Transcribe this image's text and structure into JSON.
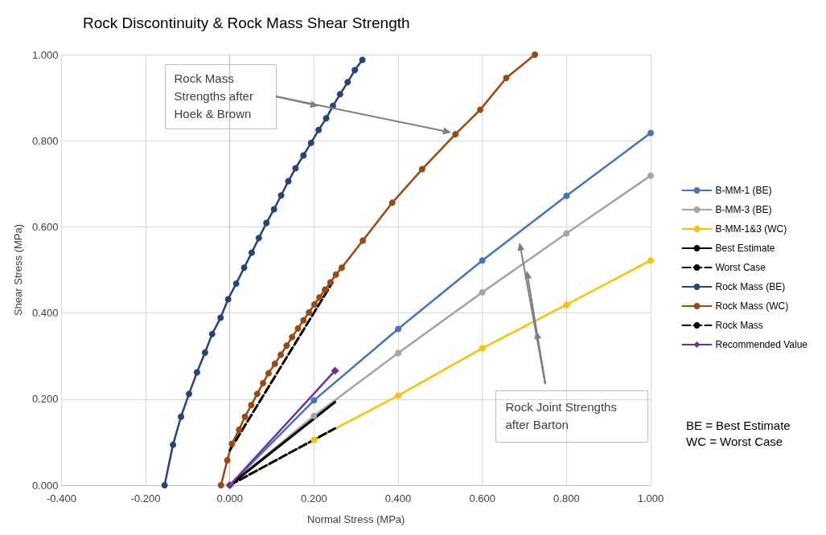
{
  "chart_data": {
    "type": "line",
    "title": "Rock Discontinuity & Rock Mass Shear Strength",
    "xlabel": "Normal Stress (MPa)",
    "ylabel": "Shear Stress (MPa)",
    "xlim": [
      -0.4,
      1.0
    ],
    "xticks": [
      {
        "value": -0.4,
        "label": "-0.400"
      },
      {
        "value": -0.2,
        "label": "-0.200"
      },
      {
        "value": 0,
        "label": "0.000"
      },
      {
        "value": 0.2,
        "label": "0.200"
      },
      {
        "value": 0.4,
        "label": "0.400"
      },
      {
        "value": 0.6,
        "label": "0.600"
      },
      {
        "value": 0.8,
        "label": "0.800"
      },
      {
        "value": 1.0,
        "label": "1.000"
      }
    ],
    "ylim": [
      0,
      1.0
    ],
    "yticks": [
      {
        "value": 0,
        "label": "0.000"
      },
      {
        "value": 0.2,
        "label": "0.200"
      },
      {
        "value": 0.4,
        "label": "0.400"
      },
      {
        "value": 0.6,
        "label": "0.600"
      },
      {
        "value": 0.8,
        "label": "0.800"
      },
      {
        "value": 1.0,
        "label": "1.000"
      }
    ],
    "grid": true,
    "legend": "right",
    "series": [
      {
        "name": "B-MM-1 (BE)",
        "color": "#4472c4",
        "marker": "circle",
        "line_style": "solid",
        "x": [
          0,
          0.2,
          0.4,
          0.6,
          0.8,
          1.0
        ],
        "values": [
          0,
          0.197,
          0.363,
          0.522,
          0.672,
          0.818
        ]
      },
      {
        "name": "B-MM-3 (BE)",
        "color": "#a5a5a5",
        "marker": "circle",
        "line_style": "solid",
        "x": [
          0,
          0.2,
          0.4,
          0.6,
          0.8,
          1.0
        ],
        "values": [
          0,
          0.161,
          0.307,
          0.448,
          0.585,
          0.719
        ]
      },
      {
        "name": "B-MM-1&3 (WC)",
        "color": "#ffc000",
        "marker": "circle",
        "line_style": "solid",
        "x": [
          0,
          0.2,
          0.4,
          0.6,
          0.8,
          1.0
        ],
        "values": [
          0,
          0.105,
          0.208,
          0.318,
          0.419,
          0.522
        ]
      },
      {
        "name": "Best Estimate",
        "color": "#000000",
        "marker": "none",
        "line_style": "solid",
        "x": [
          0,
          0.25
        ],
        "values": [
          0,
          0.193
        ]
      },
      {
        "name": "Worst Case",
        "color": "#000000",
        "marker": "none",
        "line_style": "dashed",
        "x": [
          0,
          0.25
        ],
        "values": [
          0,
          0.132
        ]
      },
      {
        "name": "Rock Mass (BE)",
        "color": "#264478",
        "marker": "circle",
        "line_style": "solid",
        "x": [
          -0.155,
          -0.135,
          -0.116,
          -0.097,
          -0.078,
          -0.059,
          -0.042,
          -0.022,
          -0.004,
          0.015,
          0.034,
          0.052,
          0.069,
          0.087,
          0.105,
          0.122,
          0.139,
          0.156,
          0.175,
          0.193,
          0.211,
          0.229,
          0.245,
          0.262,
          0.28,
          0.297,
          0.315
        ],
        "values": [
          0,
          0.094,
          0.159,
          0.212,
          0.262,
          0.308,
          0.351,
          0.389,
          0.432,
          0.468,
          0.505,
          0.54,
          0.574,
          0.609,
          0.641,
          0.673,
          0.706,
          0.736,
          0.766,
          0.795,
          0.825,
          0.852,
          0.881,
          0.908,
          0.936,
          0.964,
          0.988
        ]
      },
      {
        "name": "Rock Mass (WC)",
        "color": "#9e480e",
        "marker": "circle",
        "line_style": "solid",
        "x": [
          -0.021,
          -0.006,
          0.005,
          0.022,
          0.036,
          0.051,
          0.065,
          0.079,
          0.092,
          0.107,
          0.121,
          0.135,
          0.148,
          0.162,
          0.175,
          0.188,
          0.201,
          0.213,
          0.226,
          0.239,
          0.252,
          0.266,
          0.316,
          0.386,
          0.457,
          0.536,
          0.595,
          0.657,
          0.725
        ],
        "values": [
          0,
          0.058,
          0.096,
          0.129,
          0.159,
          0.186,
          0.212,
          0.237,
          0.26,
          0.282,
          0.303,
          0.324,
          0.344,
          0.364,
          0.383,
          0.401,
          0.42,
          0.436,
          0.454,
          0.471,
          0.489,
          0.505,
          0.568,
          0.656,
          0.734,
          0.815,
          0.872,
          0.946,
          1.0
        ]
      },
      {
        "name": "Rock Mass",
        "color": "#000000",
        "marker": "none",
        "line_style": "dashed",
        "x": [
          0,
          0.244
        ],
        "values": [
          0.081,
          0.471
        ]
      },
      {
        "name": "Recommended Value",
        "color": "#7030a0",
        "marker": "diamond",
        "line_style": "solid",
        "x": [
          0,
          0.25
        ],
        "values": [
          0,
          0.266
        ]
      }
    ],
    "annotations": [
      "Rock Mass Strengths after Hoek & Brown",
      "Rock Joint Strengths after Barton",
      "BE = Best Estimate",
      "WC = Worst Case"
    ]
  }
}
